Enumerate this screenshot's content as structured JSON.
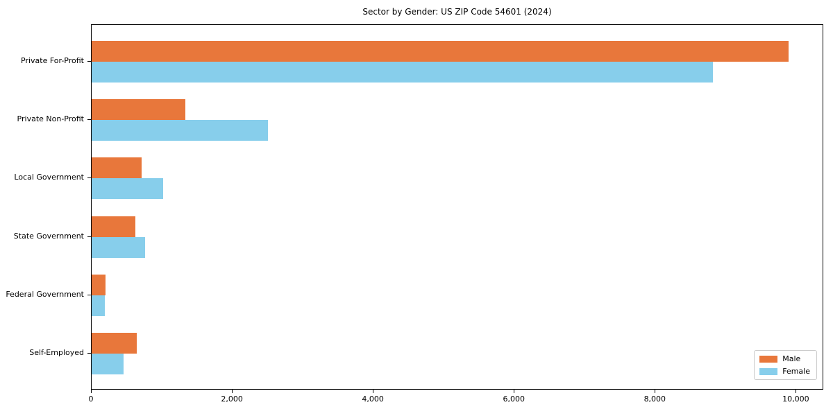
{
  "chart_data": {
    "type": "bar",
    "orientation": "horizontal",
    "title": "Sector by Gender: US ZIP Code 54601 (2024)",
    "categories": [
      "Private For-Profit",
      "Private Non-Profit",
      "Local Government",
      "State Government",
      "Federal Government",
      "Self-Employed"
    ],
    "series": [
      {
        "name": "Male",
        "color": "#e8773b",
        "values": [
          9890,
          1330,
          710,
          620,
          200,
          640
        ]
      },
      {
        "name": "Female",
        "color": "#87ceeb",
        "values": [
          8810,
          2500,
          1010,
          760,
          190,
          450
        ]
      }
    ],
    "xlabel": "",
    "ylabel": "",
    "xlim": [
      0,
      10390
    ],
    "xticks": [
      0,
      2000,
      4000,
      6000,
      8000,
      10000
    ],
    "xtick_labels": [
      "0",
      "2,000",
      "4,000",
      "6,000",
      "8,000",
      "10,000"
    ],
    "grid": false,
    "legend_position": "lower right",
    "axis_color": "#000000",
    "background_color": "#ffffff"
  }
}
